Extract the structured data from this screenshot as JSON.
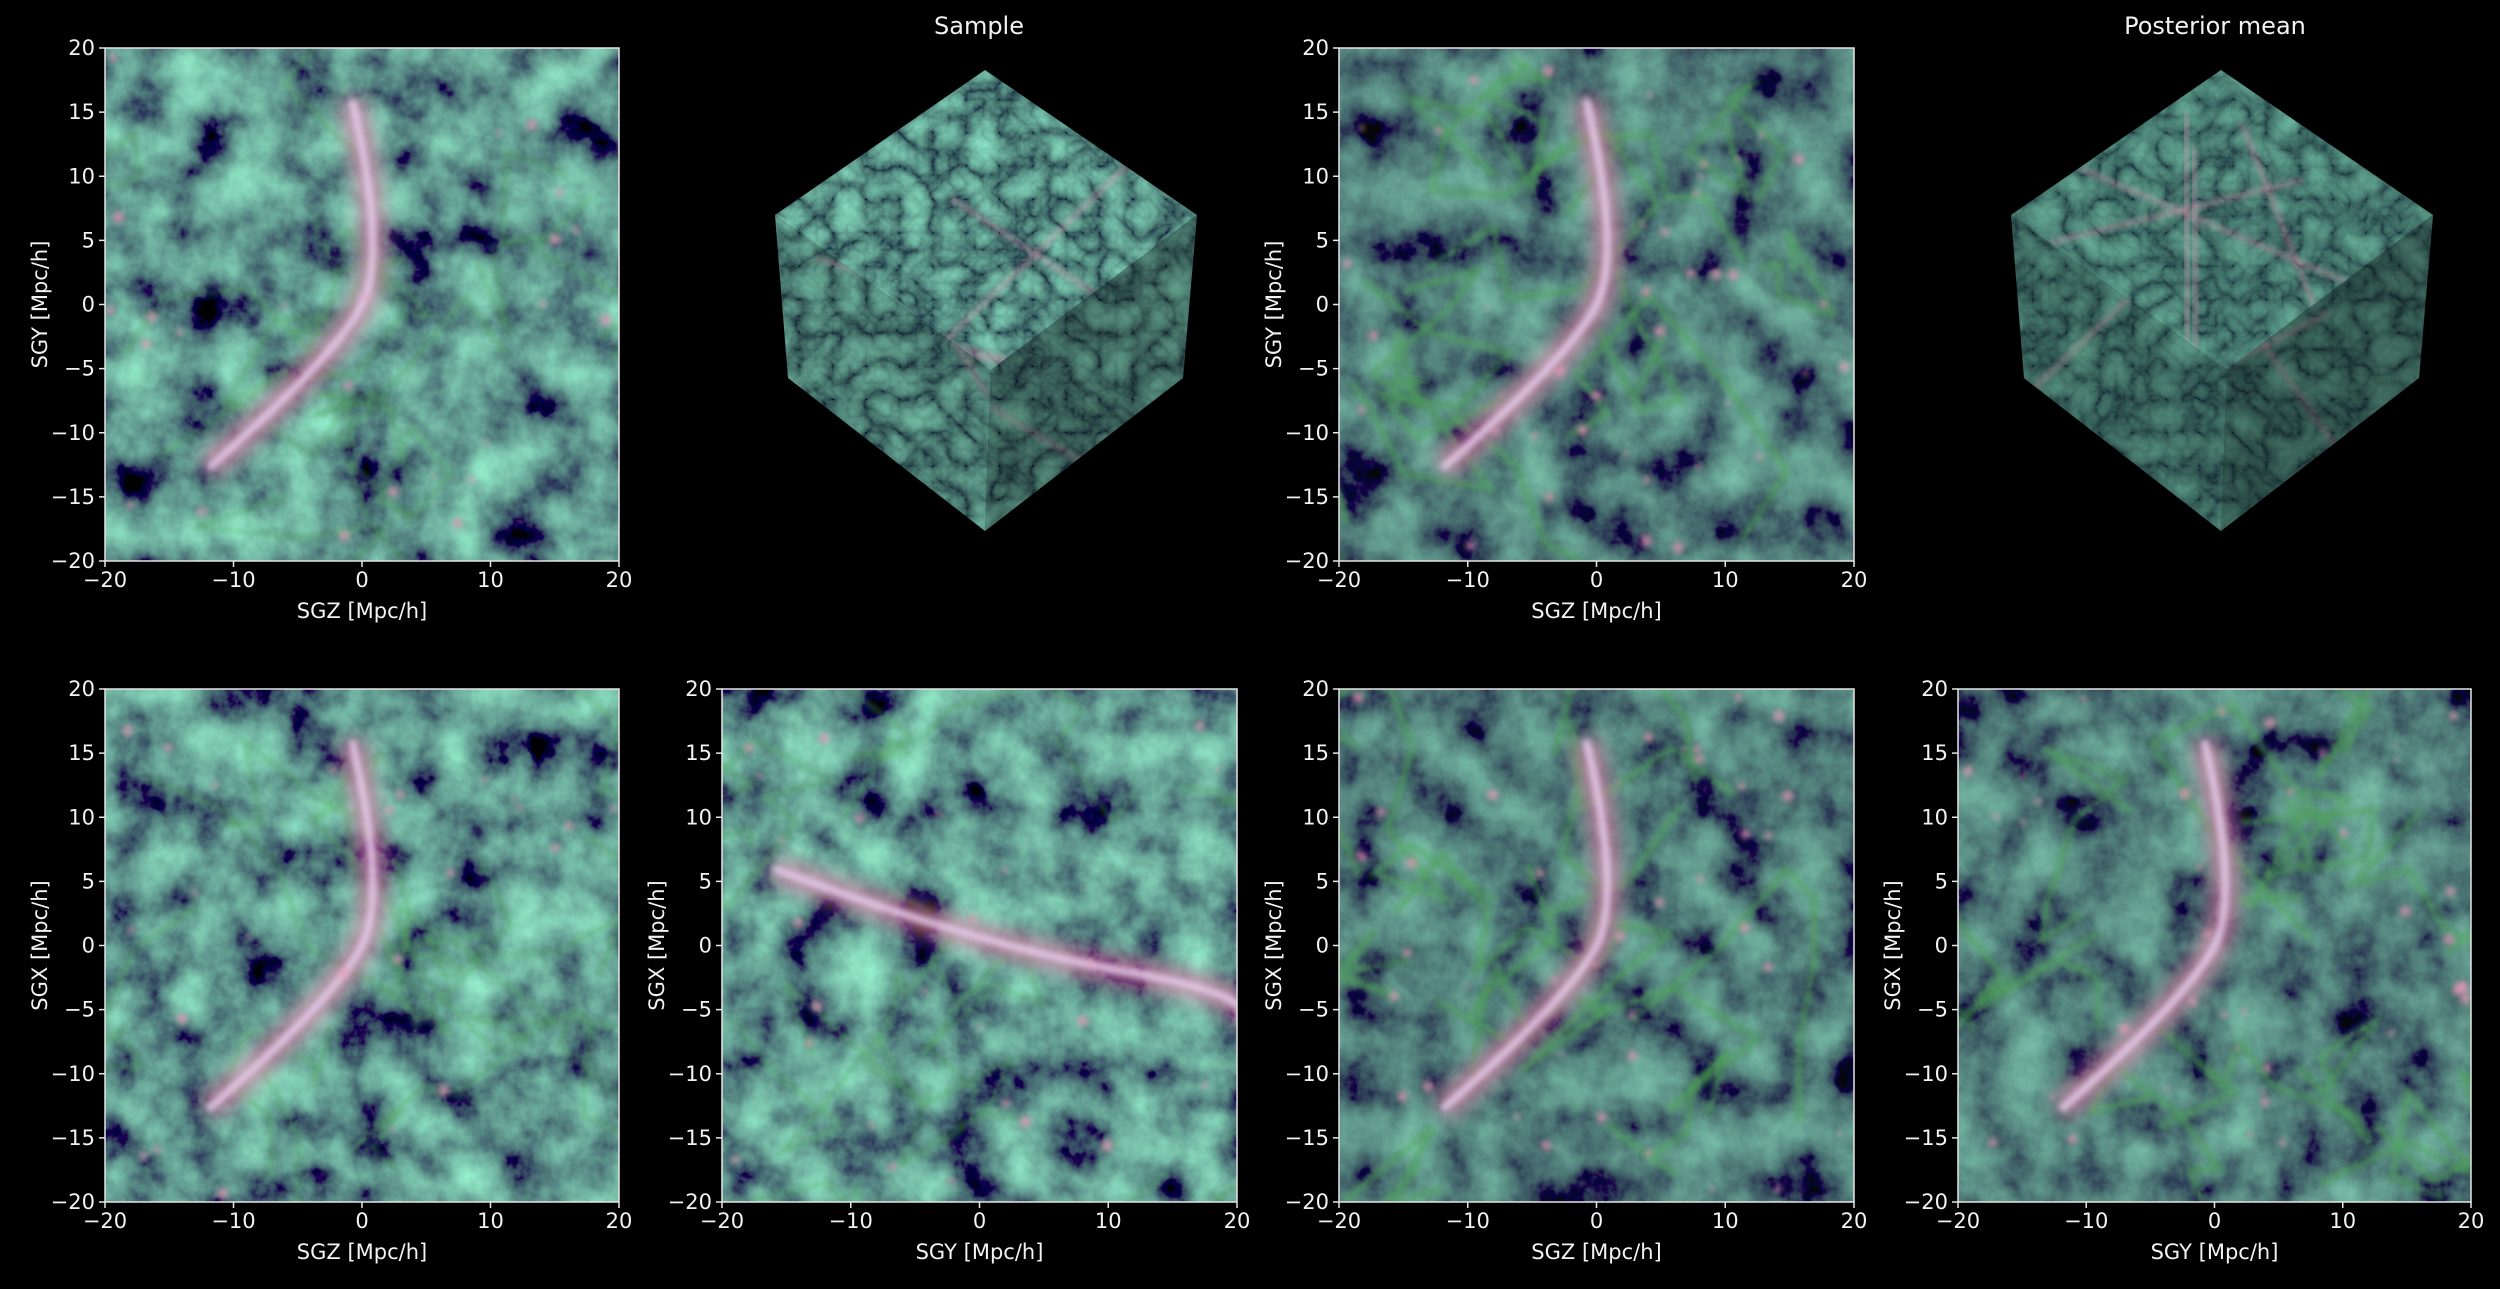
{
  "chart_data": [
    {
      "type": "image",
      "xlabel": "SGZ [Mpc/h]",
      "ylabel": "SGY [Mpc/h]",
      "xlim": [
        -20,
        20
      ],
      "ylim": [
        -20,
        20
      ],
      "xticks": [
        {
          "value": -20,
          "label": "−20"
        },
        {
          "value": -10,
          "label": "−10"
        },
        0,
        10,
        20
      ],
      "yticks": [
        {
          "value": -20,
          "label": "−20"
        },
        {
          "value": -15,
          "label": "−15"
        },
        {
          "value": -10,
          "label": "−10"
        },
        {
          "value": -5,
          "label": "−5"
        },
        0,
        5,
        10,
        15,
        20
      ]
    },
    {
      "type": "cube",
      "title": "Sample"
    },
    {
      "type": "image",
      "xlabel": "SGZ [Mpc/h]",
      "ylabel": "SGY [Mpc/h]",
      "xlim": [
        -20,
        20
      ],
      "ylim": [
        -20,
        20
      ],
      "xticks": [
        {
          "value": -20,
          "label": "−20"
        },
        {
          "value": -10,
          "label": "−10"
        },
        0,
        10,
        20
      ],
      "yticks": [
        {
          "value": -20,
          "label": "−20"
        },
        {
          "value": -15,
          "label": "−15"
        },
        {
          "value": -10,
          "label": "−10"
        },
        {
          "value": -5,
          "label": "−5"
        },
        0,
        5,
        10,
        15,
        20
      ]
    },
    {
      "type": "cube",
      "title": "Posterior mean"
    },
    {
      "type": "image",
      "xlabel": "SGZ [Mpc/h]",
      "ylabel": "SGX [Mpc/h]",
      "xlim": [
        -20,
        20
      ],
      "ylim": [
        -20,
        20
      ],
      "xticks": [
        {
          "value": -20,
          "label": "−20"
        },
        {
          "value": -10,
          "label": "−10"
        },
        0,
        10,
        20
      ],
      "yticks": [
        {
          "value": -20,
          "label": "−20"
        },
        {
          "value": -15,
          "label": "−15"
        },
        {
          "value": -10,
          "label": "−10"
        },
        {
          "value": -5,
          "label": "−5"
        },
        0,
        5,
        10,
        15,
        20
      ]
    },
    {
      "type": "image",
      "xlabel": "SGY [Mpc/h]",
      "ylabel": "SGX [Mpc/h]",
      "xlim": [
        -20,
        20
      ],
      "ylim": [
        -20,
        20
      ],
      "xticks": [
        {
          "value": -20,
          "label": "−20"
        },
        {
          "value": -10,
          "label": "−10"
        },
        0,
        10,
        20
      ],
      "yticks": [
        {
          "value": -20,
          "label": "−20"
        },
        {
          "value": -15,
          "label": "−15"
        },
        {
          "value": -10,
          "label": "−10"
        },
        {
          "value": -5,
          "label": "−5"
        },
        0,
        5,
        10,
        15,
        20
      ]
    },
    {
      "type": "image",
      "xlabel": "SGZ [Mpc/h]",
      "ylabel": "SGX [Mpc/h]",
      "xlim": [
        -20,
        20
      ],
      "ylim": [
        -20,
        20
      ],
      "xticks": [
        {
          "value": -20,
          "label": "−20"
        },
        {
          "value": -10,
          "label": "−10"
        },
        0,
        10,
        20
      ],
      "yticks": [
        {
          "value": -20,
          "label": "−20"
        },
        {
          "value": -15,
          "label": "−15"
        },
        {
          "value": -10,
          "label": "−10"
        },
        {
          "value": -5,
          "label": "−5"
        },
        0,
        5,
        10,
        15,
        20
      ]
    },
    {
      "type": "image",
      "xlabel": "SGY [Mpc/h]",
      "ylabel": "SGX [Mpc/h]",
      "xlim": [
        -20,
        20
      ],
      "ylim": [
        -20,
        20
      ],
      "xticks": [
        {
          "value": -20,
          "label": "−20"
        },
        {
          "value": -10,
          "label": "−10"
        },
        0,
        10,
        20
      ],
      "yticks": [
        {
          "value": -20,
          "label": "−20"
        },
        {
          "value": -15,
          "label": "−15"
        },
        {
          "value": -10,
          "label": "−10"
        },
        {
          "value": -5,
          "label": "−5"
        },
        0,
        5,
        10,
        15,
        20
      ]
    }
  ]
}
